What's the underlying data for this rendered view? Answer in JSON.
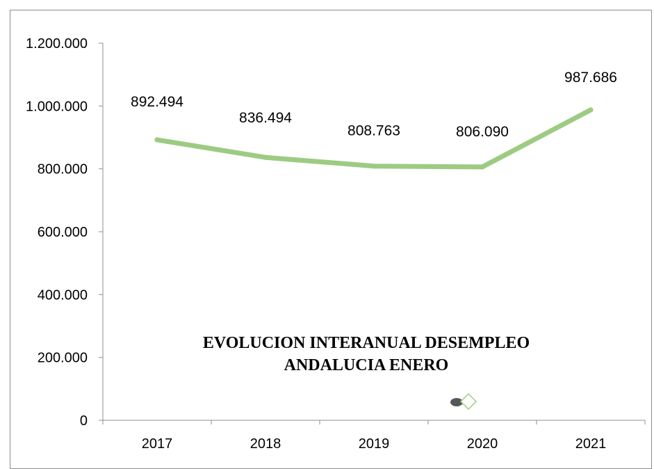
{
  "chart_data": {
    "type": "line",
    "title_lines": [
      "EVOLUCION INTERANUAL DESEMPLEO",
      "ANDALUCIA ENERO"
    ],
    "categories": [
      "2017",
      "2018",
      "2019",
      "2020",
      "2021"
    ],
    "series": [
      {
        "values": [
          892494,
          836494,
          808763,
          806090,
          987686
        ],
        "color": "#9dcb82"
      }
    ],
    "data_labels": [
      "892.494",
      "836.494",
      "808.763",
      "806.090",
      "987.686"
    ],
    "y_ticks": [
      0,
      200000,
      400000,
      600000,
      800000,
      1000000,
      1200000
    ],
    "y_tick_labels": [
      "0",
      "200.000",
      "400.000",
      "600.000",
      "800.000",
      "1.000.000",
      "1.200.000"
    ],
    "ylim": [
      0,
      1200000
    ],
    "grid": false,
    "legend": "none",
    "xlabel": "",
    "ylabel": ""
  }
}
